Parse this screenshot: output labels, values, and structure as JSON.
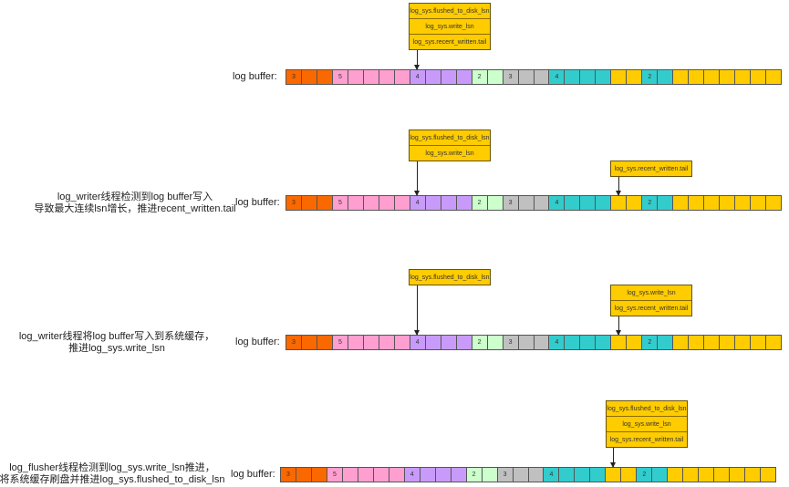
{
  "colors": {
    "orange": "#fa6800",
    "pink": "#ff9fd0",
    "purple": "#c89bfb",
    "green": "#ccffcc",
    "gray": "#c0c0c0",
    "teal": "#33cccc",
    "yellow": "#ffcc00"
  },
  "buffer_label": "log buffer:",
  "buffer_cells": [
    {
      "color": "orange",
      "text": "3"
    },
    {
      "color": "orange",
      "text": ""
    },
    {
      "color": "orange",
      "text": ""
    },
    {
      "color": "pink",
      "text": "5"
    },
    {
      "color": "pink",
      "text": ""
    },
    {
      "color": "pink",
      "text": ""
    },
    {
      "color": "pink",
      "text": ""
    },
    {
      "color": "pink",
      "text": ""
    },
    {
      "color": "purple",
      "text": "4"
    },
    {
      "color": "purple",
      "text": ""
    },
    {
      "color": "purple",
      "text": ""
    },
    {
      "color": "purple",
      "text": ""
    },
    {
      "color": "green",
      "text": "2"
    },
    {
      "color": "green",
      "text": ""
    },
    {
      "color": "gray",
      "text": "3"
    },
    {
      "color": "gray",
      "text": ""
    },
    {
      "color": "gray",
      "text": ""
    },
    {
      "color": "teal",
      "text": "4"
    },
    {
      "color": "teal",
      "text": ""
    },
    {
      "color": "teal",
      "text": ""
    },
    {
      "color": "teal",
      "text": ""
    },
    {
      "color": "yellow",
      "text": ""
    },
    {
      "color": "yellow",
      "text": ""
    },
    {
      "color": "teal",
      "text": "2"
    },
    {
      "color": "teal",
      "text": ""
    },
    {
      "color": "yellow",
      "text": ""
    },
    {
      "color": "yellow",
      "text": ""
    },
    {
      "color": "yellow",
      "text": ""
    },
    {
      "color": "yellow",
      "text": ""
    },
    {
      "color": "yellow",
      "text": ""
    },
    {
      "color": "yellow",
      "text": ""
    },
    {
      "color": "yellow",
      "text": ""
    }
  ],
  "stages": [
    {
      "description": [],
      "pointers": [
        {
          "items": [
            "log_sys.flushed_to_disk_lsn",
            "log_sys.write_lsn",
            "log_sys.recent_written.tail"
          ],
          "target_cell": 8
        }
      ]
    },
    {
      "description": [
        "log_writer线程检测到log buffer写入",
        "导致最大连续lsn增长，推进recent_written.tail"
      ],
      "pointers": [
        {
          "items": [
            "log_sys.flushed_to_disk_lsn",
            "log_sys.write_lsn"
          ],
          "target_cell": 8
        },
        {
          "items": [
            "log_sys.recent_written.tail"
          ],
          "target_cell": 21
        }
      ]
    },
    {
      "description": [
        "log_writer线程将log buffer写入到系统缓存，",
        "推进log_sys.write_lsn"
      ],
      "pointers": [
        {
          "items": [
            "log_sys.flushed_to_disk_lsn"
          ],
          "target_cell": 8
        },
        {
          "items": [
            "log_sys.write_lsn",
            "log_sys.recent_written.tail"
          ],
          "target_cell": 21
        }
      ]
    },
    {
      "description": [
        "log_flusher线程检测到log_sys.write_lsn推进，",
        "将系统缓存刷盘并推进log_sys.flushed_to_disk_lsn"
      ],
      "pointers": [
        {
          "items": [
            "log_sys.flushed_to_disk_lsn",
            "log_sys.write_lsn",
            "log_sys.recent_written.tail"
          ],
          "target_cell": 21
        }
      ]
    }
  ]
}
